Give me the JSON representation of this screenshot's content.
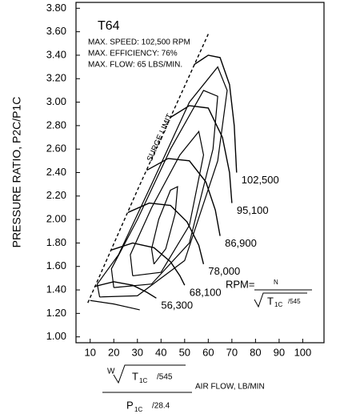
{
  "chart_data": {
    "type": "line",
    "title": "T64",
    "notes": [
      "MAX. SPEED: 102,500 RPM",
      "MAX. EFFICIENCY: 76%",
      "MAX. FLOW: 65 LBS/MIN."
    ],
    "y_label": "PRESSURE RATIO, P2C/P1C",
    "x_label": {
      "w": "W",
      "t": "T",
      "t_sub": "1C",
      "t_div": "/545",
      "text": "AIR FLOW, LB/MIN",
      "p": "P",
      "p_sub": "1C",
      "p_div": "/28.4"
    },
    "rpm_formula": {
      "lhs": "RPM=",
      "n": "N",
      "t": "T",
      "t_sub": "1C",
      "t_div": "/545"
    },
    "surge_label": "SURGE LIMIT",
    "xlim": [
      4,
      109
    ],
    "ylim": [
      0.95,
      3.85
    ],
    "xticks": [
      10,
      20,
      30,
      40,
      50,
      60,
      70,
      80,
      90,
      100
    ],
    "yticks": [
      {
        "value": 1.0,
        "label": "1.00"
      },
      {
        "value": 1.2,
        "label": "1.20"
      },
      {
        "value": 1.4,
        "label": "1.40"
      },
      {
        "value": 1.6,
        "label": "1.60"
      },
      {
        "value": 1.8,
        "label": "1.80"
      },
      {
        "value": 2.0,
        "label": "2.00"
      },
      {
        "value": 2.2,
        "label": "2.20"
      },
      {
        "value": 2.4,
        "label": "2.40"
      },
      {
        "value": 2.6,
        "label": "2.60"
      },
      {
        "value": 2.8,
        "label": "2.80"
      },
      {
        "value": 3.0,
        "label": "3.00"
      },
      {
        "value": 3.2,
        "label": "3.20"
      },
      {
        "value": 3.4,
        "label": "3.40"
      },
      {
        "value": 3.6,
        "label": "3.60"
      },
      {
        "value": 3.8,
        "label": "3.80"
      }
    ],
    "surge_line": {
      "color": "#000000",
      "dashed": true,
      "x": [
        9,
        30,
        60
      ],
      "y": [
        1.29,
        2.25,
        3.58
      ]
    },
    "series": [
      {
        "name": "102,500",
        "color": "#000000",
        "x": [
          54,
          60,
          65,
          69,
          71,
          72
        ],
        "y": [
          3.32,
          3.4,
          3.38,
          3.15,
          2.8,
          2.4
        ]
      },
      {
        "name": "95,100",
        "color": "#000000",
        "x": [
          44,
          52,
          60,
          66,
          69,
          70
        ],
        "y": [
          2.87,
          2.97,
          2.95,
          2.7,
          2.4,
          2.14
        ]
      },
      {
        "name": "86,900",
        "color": "#000000",
        "x": [
          34,
          43,
          52,
          59,
          63,
          65
        ],
        "y": [
          2.42,
          2.52,
          2.5,
          2.32,
          2.08,
          1.86
        ]
      },
      {
        "name": "78,000",
        "color": "#000000",
        "x": [
          26,
          35,
          44,
          51,
          56,
          58
        ],
        "y": [
          2.06,
          2.14,
          2.12,
          1.98,
          1.78,
          1.62
        ]
      },
      {
        "name": "68,100",
        "color": "#000000",
        "x": [
          19,
          28,
          37,
          44,
          48,
          50
        ],
        "y": [
          1.74,
          1.8,
          1.76,
          1.64,
          1.52,
          1.44
        ]
      },
      {
        "name": "56,300",
        "color": "#000000",
        "x": [
          12,
          20,
          28,
          34,
          38
        ],
        "y": [
          1.43,
          1.47,
          1.44,
          1.38,
          1.33
        ]
      }
    ],
    "efficiency_contours": [
      {
        "x": [
          37,
          42,
          46,
          47,
          44,
          39,
          36,
          37
        ],
        "y": [
          1.62,
          1.75,
          2.05,
          2.28,
          2.25,
          2.0,
          1.75,
          1.62
        ]
      },
      {
        "x": [
          28,
          40,
          52,
          58,
          56,
          48,
          36,
          27,
          28
        ],
        "y": [
          1.52,
          1.55,
          1.95,
          2.55,
          2.75,
          2.55,
          2.1,
          1.7,
          1.52
        ]
      },
      {
        "x": [
          20,
          36,
          52,
          62,
          64,
          58,
          44,
          30,
          19,
          20
        ],
        "y": [
          1.42,
          1.45,
          1.8,
          2.6,
          3.05,
          3.1,
          2.6,
          2.0,
          1.58,
          1.42
        ]
      },
      {
        "x": [
          14,
          30,
          50,
          64,
          68,
          64,
          52,
          36,
          22,
          13,
          14
        ],
        "y": [
          1.34,
          1.35,
          1.65,
          2.5,
          3.1,
          3.3,
          3.0,
          2.3,
          1.7,
          1.45,
          1.34
        ]
      },
      {
        "x": [
          10,
          20,
          31
        ],
        "y": [
          1.31,
          1.28,
          1.23
        ]
      }
    ]
  }
}
